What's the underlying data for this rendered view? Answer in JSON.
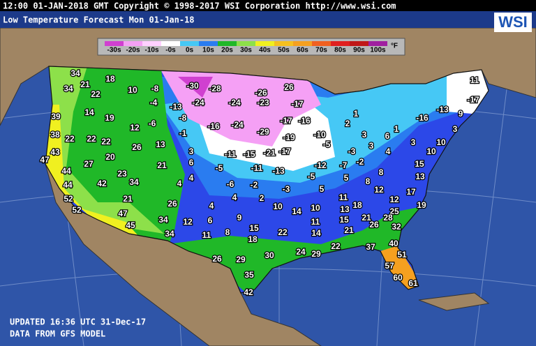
{
  "header": {
    "text": "12:00 01-JAN-2018 GMT Copyright © 1998-2017 WSI Corporation  http://www.wsi.com",
    "title": "Low Temperature Forecast   Mon 01-Jan-18",
    "logo": "WSI"
  },
  "legend": {
    "labels": [
      "-30s",
      "-20s",
      "-10s",
      "-0s",
      "0s",
      "10s",
      "20s",
      "30s",
      "40s",
      "50s",
      "60s",
      "70s",
      "80s",
      "90s",
      "100s"
    ],
    "unit": "°F"
  },
  "temperatures": [
    34,
    18,
    21,
    34,
    22,
    10,
    -8,
    -30,
    -28,
    -26,
    26,
    11,
    -4,
    -13,
    -24,
    -24,
    -23,
    -17,
    -17,
    39,
    14,
    19,
    -8,
    1,
    -16,
    -13,
    -6,
    -16,
    -24,
    -17,
    -16,
    2,
    12,
    9,
    3,
    38,
    22,
    22,
    22,
    -1,
    -29,
    -19,
    -10,
    1,
    3,
    3,
    6,
    -5,
    13,
    26,
    3,
    43,
    47,
    20,
    -11,
    -15,
    -21,
    -17,
    -3,
    4,
    3,
    10,
    10,
    27,
    6,
    -11,
    -13,
    -12,
    -7,
    -2,
    15,
    21,
    -5,
    23,
    44,
    4,
    8,
    -5,
    5,
    13,
    44,
    42,
    34,
    4,
    -6,
    -2,
    -3,
    5,
    8,
    12,
    17,
    52,
    21,
    4,
    2,
    11,
    12,
    26,
    4,
    10,
    14,
    10,
    13,
    18,
    19,
    52,
    47,
    9,
    25,
    12,
    6,
    15,
    11,
    21,
    28,
    34,
    45,
    15,
    21,
    26,
    32,
    34,
    11,
    8,
    22,
    14,
    18,
    40,
    22,
    37,
    24,
    29,
    51,
    26,
    29,
    30,
    57,
    35,
    60,
    61,
    42
  ],
  "footer": {
    "updated": "UPDATED 16:36 UTC 31-Dec-17",
    "source": "DATA FROM GFS MODEL"
  }
}
